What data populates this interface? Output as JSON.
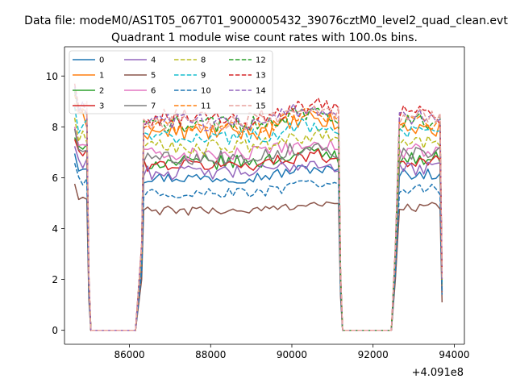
{
  "chart_data": {
    "type": "line",
    "suptitle": "Data file: modeM0/AS1T05_067T01_9000005432_39076cztM0_level2_quad_clean.evt",
    "title": "Quadrant 1 module wise count rates with 100.0s bins.",
    "xlabel": "",
    "ylabel": "",
    "x_offset_label": "+4.091e8",
    "xlim": [
      84400,
      94250
    ],
    "ylim": [
      -0.55,
      11.15
    ],
    "xticks": [
      86000,
      88000,
      90000,
      92000,
      94000
    ],
    "xtick_labels": [
      "86000",
      "88000",
      "90000",
      "92000",
      "94000"
    ],
    "yticks": [
      0,
      2,
      4,
      6,
      8,
      10
    ],
    "ytick_labels": [
      "0",
      "2",
      "4",
      "6",
      "8",
      "10"
    ],
    "grid": false,
    "legend": {
      "placement": "upper-left",
      "ncol": 4
    },
    "bin_seconds": 100,
    "segments": [
      {
        "start": 84650,
        "end": 84950
      },
      {
        "start": 86350,
        "end": 91150
      },
      {
        "start": 92650,
        "end": 93650
      }
    ],
    "gap_times": [
      85050,
      85150,
      86150,
      91250,
      91350,
      92450
    ],
    "edge_points": {
      "x": [
        85000,
        86300,
        91200,
        92550,
        93700
      ]
    },
    "series": [
      {
        "name": "0",
        "color": "#1f77b4",
        "dash": "solid",
        "base": 6.0,
        "noise": 0.22,
        "edge_values": [
          1.5,
          2.6,
          1.6,
          2.6,
          1.5
        ]
      },
      {
        "name": "1",
        "color": "#ff7f0e",
        "dash": "solid",
        "base": 7.8,
        "noise": 0.35,
        "edge_values": [
          2.0,
          3.2,
          2.1,
          3.0,
          1.8
        ]
      },
      {
        "name": "2",
        "color": "#2ca02c",
        "dash": "solid",
        "base": 6.6,
        "noise": 0.28,
        "edge_values": [
          1.7,
          2.8,
          1.8,
          2.7,
          1.6
        ]
      },
      {
        "name": "3",
        "color": "#d62728",
        "dash": "solid",
        "base": 6.5,
        "noise": 0.25,
        "edge_values": [
          1.7,
          2.8,
          1.8,
          2.7,
          1.6
        ]
      },
      {
        "name": "4",
        "color": "#9467bd",
        "dash": "solid",
        "base": 6.2,
        "noise": 0.28,
        "edge_values": [
          1.6,
          2.7,
          1.7,
          2.6,
          1.5
        ]
      },
      {
        "name": "5",
        "color": "#8c564b",
        "dash": "solid",
        "base": 4.7,
        "noise": 0.18,
        "edge_values": [
          1.2,
          2.0,
          1.3,
          2.0,
          1.1
        ]
      },
      {
        "name": "6",
        "color": "#e377c2",
        "dash": "solid",
        "base": 6.9,
        "noise": 0.3,
        "edge_values": [
          1.8,
          2.9,
          1.9,
          2.8,
          1.7
        ]
      },
      {
        "name": "7",
        "color": "#7f7f7f",
        "dash": "solid",
        "base": 6.8,
        "noise": 0.28,
        "edge_values": [
          1.8,
          2.9,
          1.9,
          2.8,
          1.7
        ]
      },
      {
        "name": "8",
        "color": "#bcbd22",
        "dash": "dashed",
        "base": 7.2,
        "noise": 0.3,
        "edge_values": [
          1.9,
          3.0,
          2.0,
          2.9,
          1.8
        ]
      },
      {
        "name": "9",
        "color": "#17becf",
        "dash": "dashed",
        "base": 7.6,
        "noise": 0.3,
        "edge_values": [
          2.0,
          3.1,
          2.1,
          3.0,
          1.9
        ]
      },
      {
        "name": "10",
        "color": "#1f77b4",
        "dash": "dashed",
        "base": 5.4,
        "noise": 0.22,
        "edge_values": [
          1.4,
          2.3,
          1.5,
          2.3,
          1.4
        ]
      },
      {
        "name": "11",
        "color": "#ff7f0e",
        "dash": "dashed",
        "base": 8.0,
        "noise": 0.32,
        "edge_values": [
          2.1,
          3.3,
          2.2,
          3.2,
          2.0
        ]
      },
      {
        "name": "12",
        "color": "#2ca02c",
        "dash": "dashed",
        "base": 8.1,
        "noise": 0.32,
        "edge_values": [
          2.1,
          3.3,
          2.2,
          3.2,
          2.0
        ]
      },
      {
        "name": "13",
        "color": "#d62728",
        "dash": "dashed",
        "base": 8.3,
        "noise": 0.4,
        "edge_values": [
          2.2,
          3.4,
          2.3,
          3.3,
          2.1
        ]
      },
      {
        "name": "14",
        "color": "#9467bd",
        "dash": "dashed",
        "base": 8.2,
        "noise": 0.35,
        "edge_values": [
          2.1,
          3.3,
          2.2,
          3.2,
          2.0
        ]
      },
      {
        "name": "15",
        "color": "#e8a29d",
        "dash": "dashed",
        "base": 8.2,
        "noise": 0.35,
        "edge_values": [
          2.1,
          3.3,
          2.2,
          3.2,
          2.0
        ]
      }
    ]
  }
}
